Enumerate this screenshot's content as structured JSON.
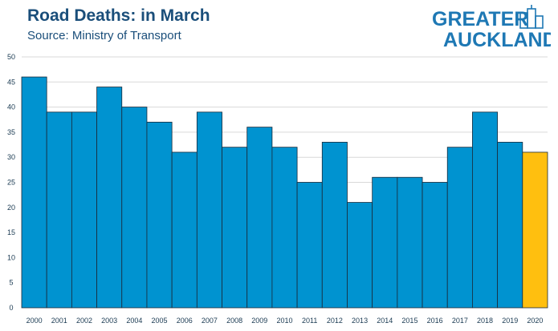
{
  "header": {
    "title": "Road Deaths: in March",
    "subtitle": "Source: Ministry of Transport"
  },
  "logo": {
    "line1": "GREATER",
    "line2": "AUCKLAND",
    "icon": "city-skyline-icon",
    "color": "#1e78b4"
  },
  "colors": {
    "bar": "#0093d0",
    "highlight": "#ffbf0f",
    "grid": "#d9d9d9",
    "text": "#1a4e7a"
  },
  "chart_data": {
    "type": "bar",
    "title": "Road Deaths: in March",
    "subtitle": "Source: Ministry of Transport",
    "xlabel": "",
    "ylabel": "",
    "categories": [
      "2000",
      "2001",
      "2002",
      "2003",
      "2004",
      "2005",
      "2006",
      "2007",
      "2008",
      "2009",
      "2010",
      "2011",
      "2012",
      "2013",
      "2014",
      "2015",
      "2016",
      "2017",
      "2018",
      "2019",
      "2020"
    ],
    "values": [
      46,
      39,
      39,
      44,
      40,
      37,
      31,
      39,
      32,
      36,
      32,
      25,
      33,
      21,
      26,
      26,
      25,
      32,
      39,
      33,
      31
    ],
    "highlight_category": "2020",
    "ylim": [
      0,
      50
    ],
    "yticks": [
      0,
      5,
      10,
      15,
      20,
      25,
      30,
      35,
      40,
      45,
      50
    ],
    "grid": true,
    "legend": "none"
  }
}
